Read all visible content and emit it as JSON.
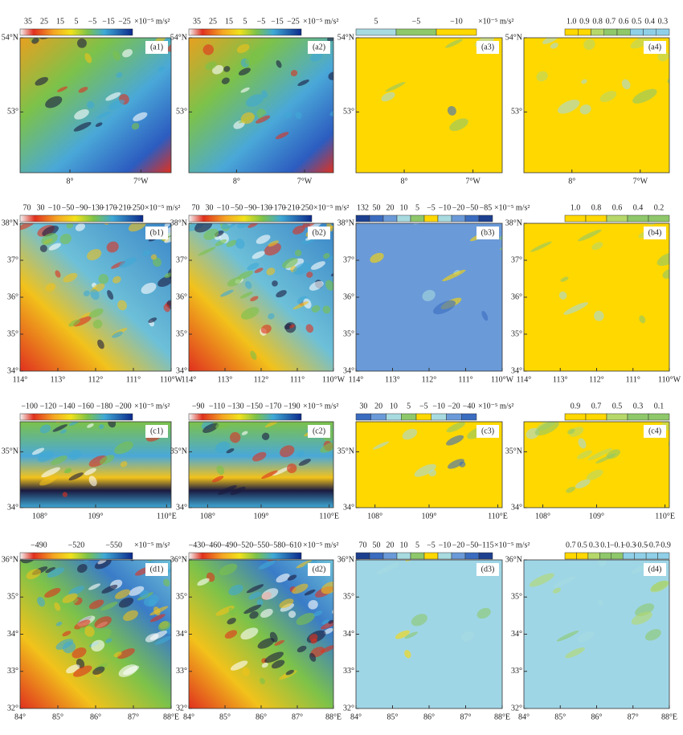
{
  "rows": [
    {
      "yticks": [
        "54°N",
        "53°"
      ],
      "xticks": [
        "8°",
        "7°W"
      ],
      "panels": [
        {
          "label": "(a1)",
          "scale": [
            "35",
            "25",
            "15",
            "5",
            "−5",
            "−15",
            "−25"
          ],
          "unit": "×10⁻⁵ m/s²"
        },
        {
          "label": "(a2)",
          "scale": [
            "35",
            "25",
            "15",
            "5",
            "−5",
            "−15",
            "−25"
          ],
          "unit": "×10⁻⁵ m/s²"
        },
        {
          "label": "(a3)",
          "scale": [
            "5",
            "−5",
            "−10"
          ],
          "unit": "×10⁻⁵ m/s²"
        },
        {
          "label": "(a4)",
          "scale": [
            "1.0",
            "0.9",
            "0.8",
            "0.7",
            "0.6",
            "0.5",
            "0.4",
            "0.3"
          ]
        }
      ]
    },
    {
      "yticks": [
        "38°N",
        "37°",
        "36°",
        "35°",
        "34°"
      ],
      "xticks": [
        "114°",
        "113°",
        "112°",
        "111°",
        "110°W"
      ],
      "panels": [
        {
          "label": "(b1)",
          "scale": [
            "70",
            "30",
            "−10",
            "−50",
            "−90",
            "−130",
            "−170",
            "−210",
            "−250"
          ],
          "unit": "×10⁻⁵ m/s²"
        },
        {
          "label": "(b2)",
          "scale": [
            "70",
            "30",
            "−10",
            "−50",
            "−90",
            "−130",
            "−170",
            "−210",
            "−250"
          ],
          "unit": "×10⁻⁵ m/s²"
        },
        {
          "label": "(b3)",
          "scale": [
            "132",
            "50",
            "20",
            "10",
            "5",
            "−5",
            "−10",
            "−20",
            "−50",
            "−85"
          ],
          "unit": "×10⁻⁵ m/s²"
        },
        {
          "label": "(b4)",
          "scale": [
            "1.0",
            "0.8",
            "0.6",
            "0.4",
            "0.2"
          ]
        }
      ]
    },
    {
      "yticks": [
        "35°N",
        "34°"
      ],
      "xticks": [
        "108°",
        "109°",
        "110°E"
      ],
      "panels": [
        {
          "label": "(c1)",
          "scale": [
            "−100",
            "−120",
            "−140",
            "−160",
            "−180",
            "−200"
          ],
          "unit": "×10⁻⁵ m/s²"
        },
        {
          "label": "(c2)",
          "scale": [
            "−90",
            "−110",
            "−130",
            "−150",
            "−170",
            "−190"
          ],
          "unit": "×10⁻⁵ m/s²"
        },
        {
          "label": "(c3)",
          "scale": [
            "30",
            "20",
            "10",
            "5",
            "−5",
            "−10",
            "−20",
            "−40"
          ],
          "unit": "×10⁻⁵ m/s²"
        },
        {
          "label": "(c4)",
          "scale": [
            "0.9",
            "0.7",
            "0.5",
            "0.3",
            "0.1"
          ]
        }
      ]
    },
    {
      "yticks": [
        "36°N",
        "35°",
        "34°",
        "33°",
        "32°"
      ],
      "xticks": [
        "84°",
        "85°",
        "86°",
        "87°",
        "88°E"
      ],
      "panels": [
        {
          "label": "(d1)",
          "scale": [
            "−490",
            "−520",
            "−550"
          ],
          "unit": "×10⁻⁵ m/s²"
        },
        {
          "label": "(d2)",
          "scale": [
            "−430",
            "−460",
            "−490",
            "−520",
            "−550",
            "−580",
            "−610"
          ],
          "unit": "×10⁻⁵ m/s²"
        },
        {
          "label": "(d3)",
          "scale": [
            "70",
            "50",
            "20",
            "10",
            "5",
            "−5",
            "−10",
            "−20",
            "−50",
            "−115"
          ],
          "unit": "×10⁻⁵ m/s²"
        },
        {
          "label": "(d4)",
          "scale": [
            "0.7",
            "0.5",
            "0.3",
            "0.1",
            "−0.1",
            "−0.3",
            "−0.5",
            "−0.7",
            "−0.9"
          ]
        }
      ]
    }
  ]
}
